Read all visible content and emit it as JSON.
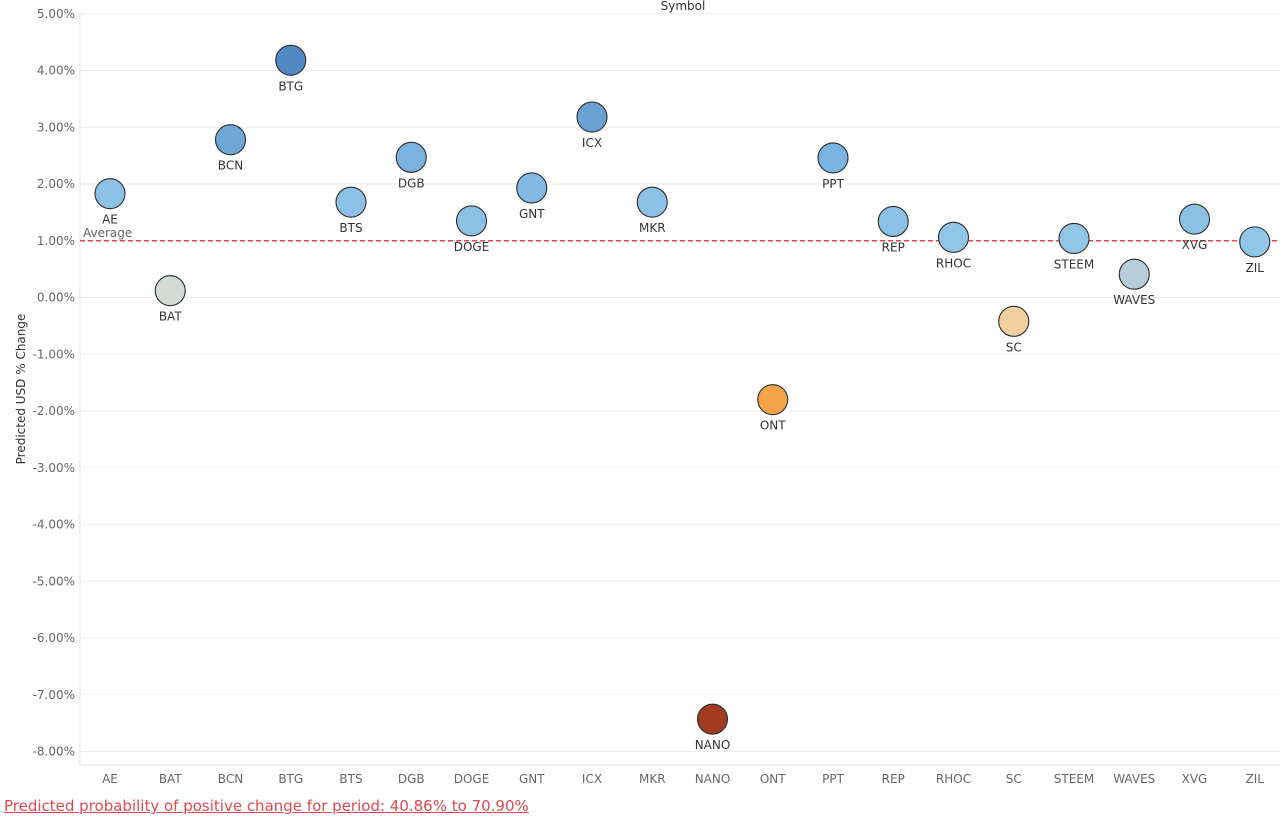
{
  "chart_data": {
    "type": "scatter",
    "title": "Symbol",
    "ylabel": "Predicted USD % Change",
    "xlabel": "",
    "categories": [
      "AE",
      "BAT",
      "BCN",
      "BTG",
      "BTS",
      "DGB",
      "DOGE",
      "GNT",
      "ICX",
      "MKR",
      "NANO",
      "ONT",
      "PPT",
      "REP",
      "RHOC",
      "SC",
      "STEEM",
      "WAVES",
      "XVG",
      "ZIL"
    ],
    "ylim": [
      -8.3,
      5.0
    ],
    "yticks": [
      5,
      4,
      3,
      2,
      1,
      0,
      -1,
      -2,
      -3,
      -4,
      -5,
      -6,
      -7,
      -8
    ],
    "ytick_labels": [
      "5.00%",
      "4.00%",
      "3.00%",
      "2.00%",
      "1.00%",
      "0.00%",
      "-1.00%",
      "-2.00%",
      "-3.00%",
      "-4.00%",
      "-5.00%",
      "-6.00%",
      "-7.00%",
      "-8.00%"
    ],
    "grid": true,
    "points": [
      {
        "symbol": "AE",
        "y": 1.83,
        "color": "#8cc0e5"
      },
      {
        "symbol": "BAT",
        "y": 0.12,
        "color": "#d4dad6"
      },
      {
        "symbol": "BCN",
        "y": 2.78,
        "color": "#6fa7d6"
      },
      {
        "symbol": "BTG",
        "y": 4.18,
        "color": "#5289c2"
      },
      {
        "symbol": "BTS",
        "y": 1.68,
        "color": "#8cc0e5"
      },
      {
        "symbol": "DGB",
        "y": 2.47,
        "color": "#7ab3df"
      },
      {
        "symbol": "DOGE",
        "y": 1.35,
        "color": "#8cc0e5"
      },
      {
        "symbol": "GNT",
        "y": 1.93,
        "color": "#82b8e2"
      },
      {
        "symbol": "ICX",
        "y": 3.18,
        "color": "#6aa2d4"
      },
      {
        "symbol": "MKR",
        "y": 1.68,
        "color": "#8cc0e5"
      },
      {
        "symbol": "NANO",
        "y": -7.43,
        "color": "#a33b20"
      },
      {
        "symbol": "ONT",
        "y": -1.8,
        "color": "#f5a349"
      },
      {
        "symbol": "PPT",
        "y": 2.46,
        "color": "#7ab3df"
      },
      {
        "symbol": "REP",
        "y": 1.34,
        "color": "#8cc0e5"
      },
      {
        "symbol": "RHOC",
        "y": 1.06,
        "color": "#93c5e7"
      },
      {
        "symbol": "SC",
        "y": -0.42,
        "color": "#f1cfa0"
      },
      {
        "symbol": "STEEM",
        "y": 1.04,
        "color": "#93c5e7"
      },
      {
        "symbol": "WAVES",
        "y": 0.41,
        "color": "#b6ccd8"
      },
      {
        "symbol": "XVG",
        "y": 1.38,
        "color": "#8cc0e5"
      },
      {
        "symbol": "ZIL",
        "y": 0.98,
        "color": "#93c5e7"
      }
    ],
    "reference_line": {
      "label": "Average",
      "value": 1.0,
      "color": "#e0484f"
    }
  },
  "footer": {
    "text": "Predicted probability of positive change for period:  40.86% to 70.90% ",
    "color": "#e0484f"
  }
}
